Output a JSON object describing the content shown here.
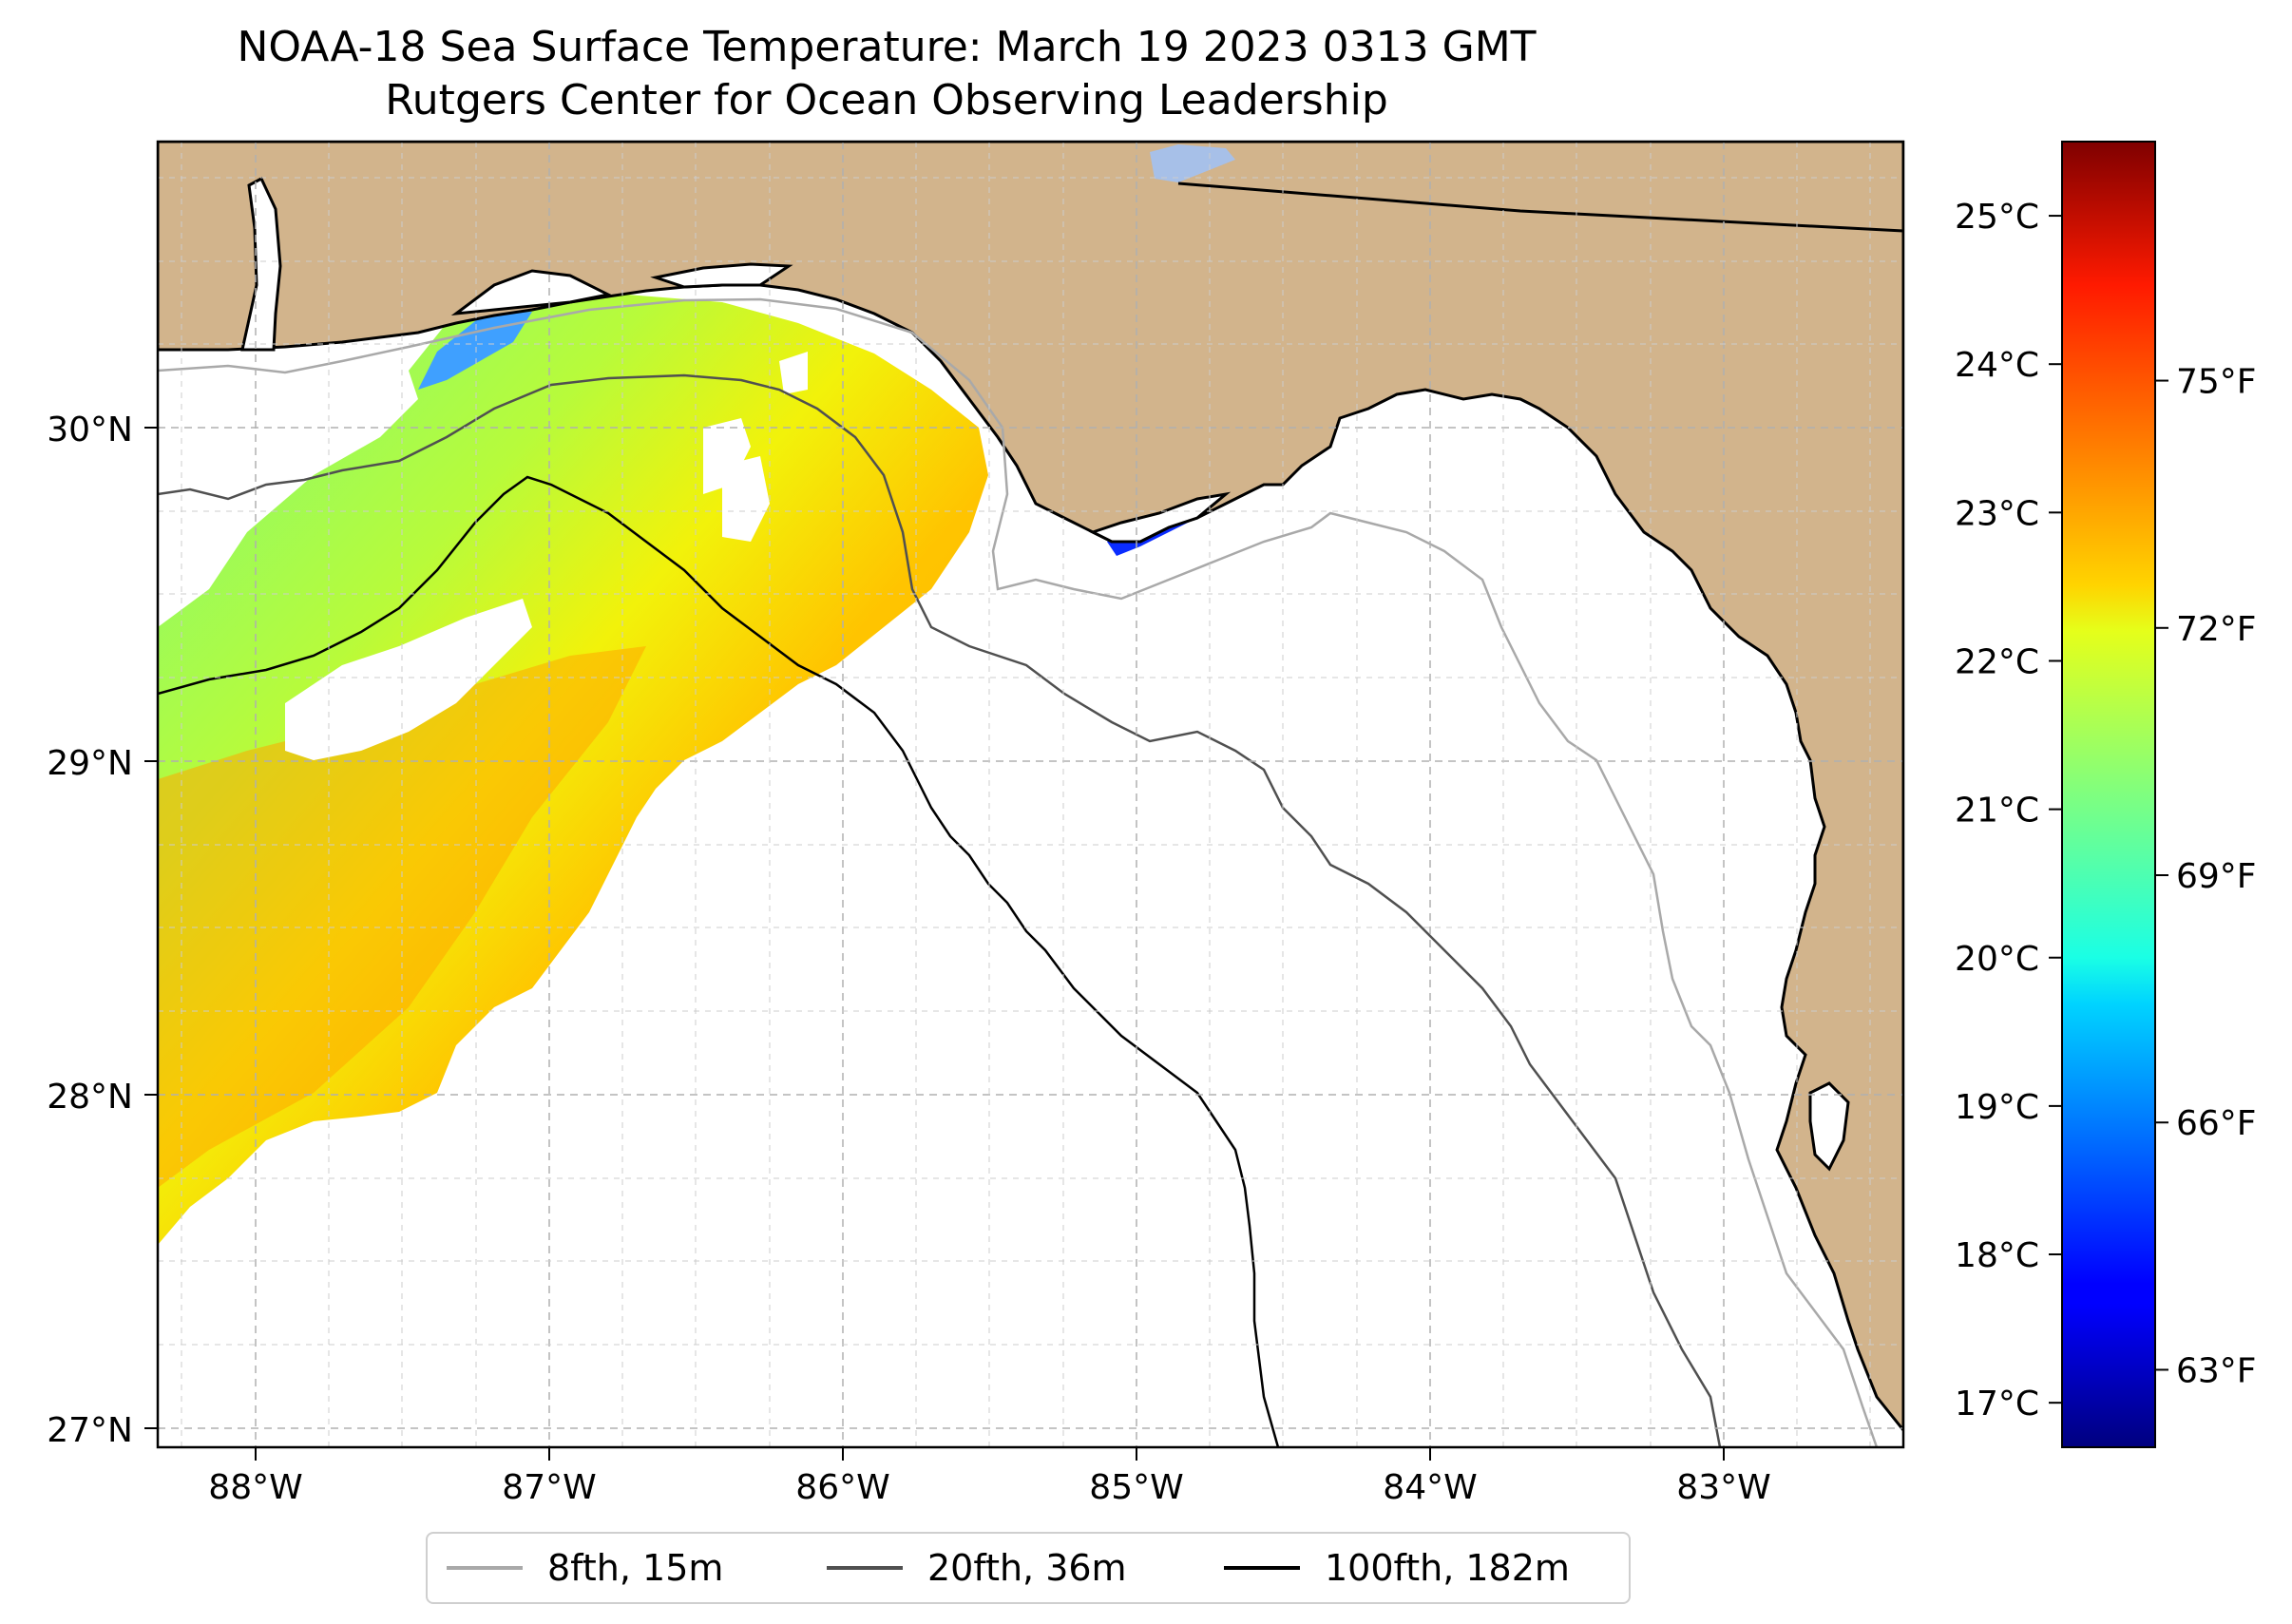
{
  "title": {
    "line1": "NOAA-18 Sea Surface Temperature: March 19 2023 0313 GMT",
    "line2": "Rutgers Center for Ocean Observing Leadership"
  },
  "map": {
    "lat_labels": [
      "30°N",
      "29°N",
      "28°N",
      "27°N"
    ],
    "lon_labels": [
      "88°W",
      "87°W",
      "86°W",
      "85°W",
      "84°W",
      "83°W"
    ],
    "lat_values": [
      30,
      29,
      28,
      27
    ],
    "lon_values": [
      -88,
      -87,
      -86,
      -85,
      -84,
      -83
    ],
    "extent": {
      "lon": [
        -88.33,
        -82.38
      ],
      "lat": [
        26.94,
        30.85
      ]
    },
    "colors": {
      "land": "#d2b48c",
      "ocean": "#ffffff",
      "coast": "#000000",
      "grid": "#b0b0b0",
      "lake": "#a7c0e8"
    }
  },
  "colorbar": {
    "celsius_labels": [
      "25°C",
      "24°C",
      "23°C",
      "22°C",
      "21°C",
      "20°C",
      "19°C",
      "18°C",
      "17°C"
    ],
    "celsius_values": [
      25,
      24,
      23,
      22,
      21,
      20,
      19,
      18,
      17
    ],
    "fahrenheit_labels": [
      "75°F",
      "72°F",
      "69°F",
      "66°F",
      "63°F"
    ],
    "fahrenheit_values": [
      75,
      72,
      69,
      66,
      63
    ],
    "range_c": [
      16.7,
      25.5
    ],
    "colormap": "jet"
  },
  "legend": {
    "items": [
      {
        "label": "8fth, 15m",
        "color": "#a9a9a9"
      },
      {
        "label": "20fth, 36m",
        "color": "#505050"
      },
      {
        "label": "100fth, 182m",
        "color": "#000000"
      }
    ]
  }
}
